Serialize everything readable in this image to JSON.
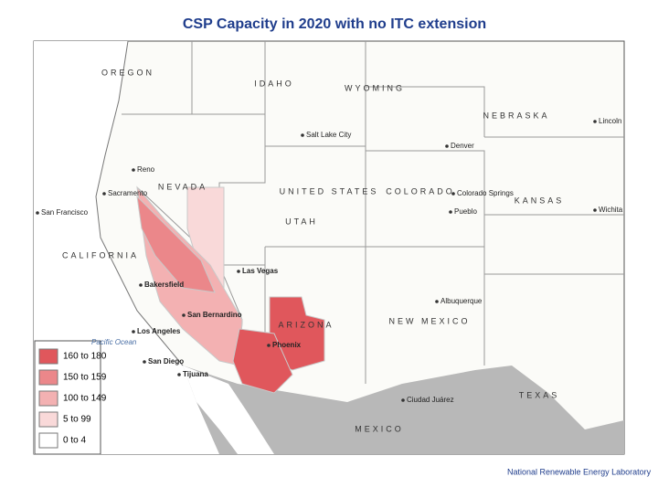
{
  "title": "CSP Capacity in 2020 with no ITC extension",
  "legend": {
    "items": [
      {
        "label": "160 to 180",
        "color": "#e0575c"
      },
      {
        "label": "150 to 159",
        "color": "#eb878a"
      },
      {
        "label": "100 to 149",
        "color": "#f3b1b2"
      },
      {
        "label": "5 to 99",
        "color": "#f9d9d9"
      },
      {
        "label": "0 to 4",
        "color": "#ffffff"
      }
    ]
  },
  "regions": [
    "OREGON",
    "IDAHO",
    "WYOMING",
    "NEBRASKA",
    "NEVADA",
    "UTAH",
    "COLORADO",
    "KANSAS",
    "CALIFORNIA",
    "ARIZONA",
    "NEW MEXICO",
    "TEXAS",
    "MEXICO",
    "UNITED STATES"
  ],
  "cities": [
    "Reno",
    "Sacramento",
    "San Francisco",
    "Salt Lake City",
    "Denver",
    "Colorado Springs",
    "Pueblo",
    "Lincoln",
    "Wichita",
    "Las Vegas",
    "Bakersfield",
    "San Bernardino",
    "Los Angeles",
    "San Diego",
    "Tijuana",
    "Phoenix",
    "Albuquerque",
    "Ciudad Juárez"
  ],
  "ocean": "Pacific Ocean",
  "footer": "National Renewable Energy Laboratory"
}
